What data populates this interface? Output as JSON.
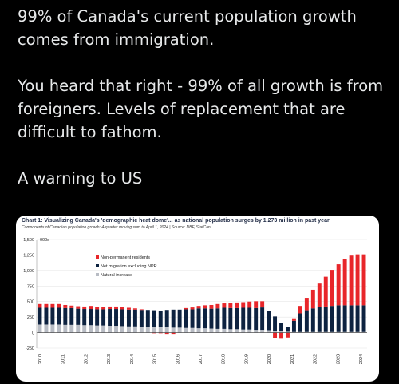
{
  "post": {
    "lines": [
      "99% of Canada's current population growth comes from immigration.",
      "You heard that right - 99% of all growth is from foreigners.  Levels of replacement that are difficult to fathom.",
      "A warning to US"
    ]
  },
  "chart_data": {
    "type": "bar",
    "title": "Chart 1: Visualizing Canada's 'demographic heat dome'... as national population surges by 1.273 million in past year",
    "subtitle": "Components of Canadian population growth: 4-quarter moving sum to April 1, 2024  |  Source: NBF, StatCan",
    "unit_label": "000s",
    "ylim": [
      -250,
      1500
    ],
    "yticks": [
      "-250",
      "0",
      "250",
      "500",
      "750",
      "1,000",
      "1,250",
      "1,500"
    ],
    "ytick_values": [
      -250,
      0,
      250,
      500,
      750,
      1000,
      1250,
      1500
    ],
    "xticks": [
      "2010",
      "2011",
      "2012",
      "2013",
      "2014",
      "2015",
      "2016",
      "2017",
      "2018",
      "2019",
      "2020",
      "2021",
      "2022",
      "2023",
      "2024"
    ],
    "stacked": true,
    "series": [
      {
        "name": "Non-permanent residents",
        "color": "#e8262a",
        "values": [
          60,
          60,
          60,
          60,
          50,
          40,
          40,
          40,
          50,
          40,
          40,
          40,
          40,
          40,
          30,
          20,
          10,
          0,
          -10,
          -10,
          -20,
          -20,
          0,
          20,
          30,
          40,
          50,
          60,
          70,
          70,
          80,
          90,
          90,
          100,
          110,
          100,
          0,
          -90,
          -100,
          -80,
          40,
          120,
          200,
          300,
          380,
          480,
          580,
          660,
          750,
          800,
          820,
          820
        ]
      },
      {
        "name": "Net migration excluding NPR",
        "color": "#0d2240",
        "values": [
          270,
          270,
          270,
          270,
          270,
          270,
          260,
          260,
          260,
          260,
          260,
          270,
          270,
          270,
          270,
          270,
          270,
          270,
          270,
          270,
          280,
          290,
          290,
          300,
          300,
          320,
          320,
          320,
          330,
          340,
          340,
          340,
          350,
          350,
          350,
          360,
          310,
          230,
          140,
          80,
          180,
          300,
          350,
          380,
          400,
          410,
          420,
          430,
          430,
          430,
          430,
          430
        ]
      },
      {
        "name": "Natural increase",
        "color": "#b8bcc4",
        "values": [
          130,
          130,
          130,
          130,
          125,
          125,
          125,
          120,
          120,
          115,
          115,
          110,
          110,
          105,
          100,
          100,
          95,
          95,
          90,
          85,
          85,
          80,
          80,
          75,
          75,
          70,
          70,
          65,
          60,
          60,
          55,
          55,
          50,
          50,
          45,
          45,
          40,
          30,
          20,
          15,
          10,
          10,
          10,
          10,
          10,
          10,
          10,
          10,
          10,
          10,
          10,
          10
        ]
      }
    ]
  }
}
